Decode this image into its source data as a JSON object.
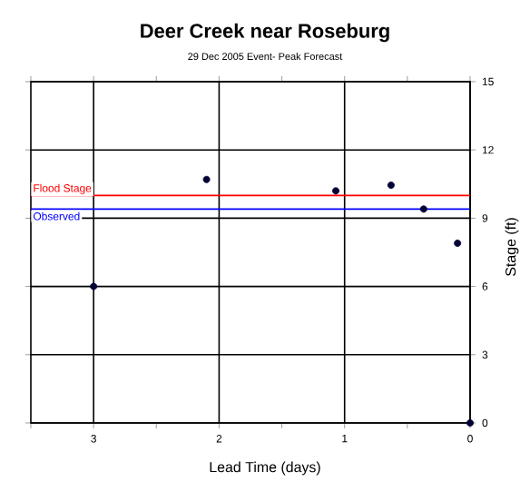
{
  "chart_data": {
    "type": "scatter",
    "title": "Deer Creek near Roseburg",
    "subtitle": "29 Dec 2005 Event- Peak Forecast",
    "xlabel": "Lead Time (days)",
    "ylabel": "Stage (ft)",
    "x": [
      3.0,
      2.1,
      1.07,
      0.63,
      0.37,
      0.1,
      0
    ],
    "series": [
      {
        "color": "#000033",
        "values": [
          6.0,
          10.7,
          10.2,
          10.45,
          9.4,
          7.9,
          0
        ]
      }
    ],
    "xlim": [
      3.5,
      0
    ],
    "xticks": [
      3,
      2,
      1,
      0,
      {
        "value": 3.5,
        "label": null
      },
      {
        "value": 2.5,
        "label": null
      },
      {
        "value": 1.5,
        "label": null
      },
      {
        "value": 0.5,
        "label": null
      }
    ],
    "ylim": [
      0,
      15
    ],
    "yticks": [
      0,
      3,
      6,
      9,
      12,
      15
    ],
    "grid": true,
    "marker": "circle",
    "ref_lines": [
      {
        "axis": "y",
        "value": 10,
        "label": "Flood Stage",
        "color": "#ff0000"
      },
      {
        "axis": "y",
        "value": 9.4,
        "label": "Observed",
        "color": "#0000ff"
      }
    ]
  }
}
